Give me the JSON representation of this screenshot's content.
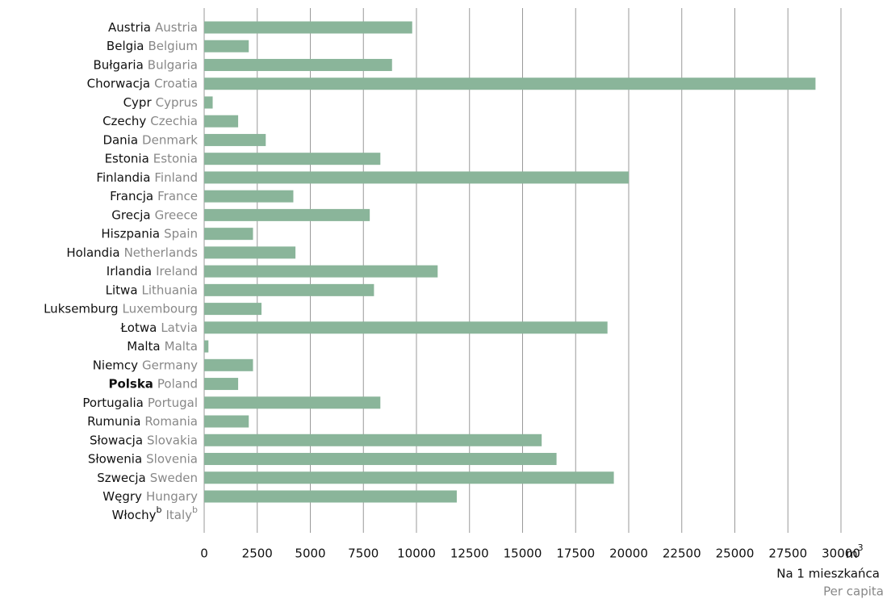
{
  "chart_data": {
    "type": "hbar",
    "categories": [
      "Austria",
      "Belgia",
      "Bułgaria",
      "Chorwacja",
      "Cypr",
      "Czechy",
      "Dania",
      "Estonia",
      "Finlandia",
      "Francja",
      "Grecja",
      "Hiszpania",
      "Holandia",
      "Irlandia",
      "Litwa",
      "Luksemburg",
      "Łotwa",
      "Malta",
      "Niemcy",
      "Polska",
      "Portugalia",
      "Rumunia",
      "Słowacja",
      "Słowenia",
      "Szwecja",
      "Węgry",
      "Włochy"
    ],
    "categories_en": [
      "Austria",
      "Belgium",
      "Bulgaria",
      "Croatia",
      "Cyprus",
      "Czechia",
      "Denmark",
      "Estonia",
      "Finland",
      "France",
      "Greece",
      "Spain",
      "Netherlands",
      "Ireland",
      "Lithuania",
      "Luxembourg",
      "Latvia",
      "Malta",
      "Germany",
      "Poland",
      "Portugal",
      "Romania",
      "Slovakia",
      "Slovenia",
      "Sweden",
      "Hungary",
      "Italy"
    ],
    "values": [
      9800,
      2100,
      8850,
      28800,
      400,
      1600,
      2900,
      8300,
      20000,
      4200,
      7800,
      2300,
      4300,
      11000,
      8000,
      2700,
      19000,
      200,
      2300,
      1600,
      8300,
      2100,
      15900,
      16600,
      19300,
      11900,
      null
    ],
    "color": "#8ab59a",
    "highlight_index": 19,
    "category_notes": [
      {
        "index": 26,
        "text": "b"
      }
    ],
    "xlim": [
      0,
      30000
    ],
    "xticks": [
      0,
      2500,
      5000,
      7500,
      10000,
      12500,
      15000,
      17500,
      20000,
      22500,
      25000,
      27500,
      30000
    ],
    "grid": true,
    "unit": "m",
    "unit_sup": "3",
    "x_label": "Na 1 mieszkańca",
    "x_label_en": "Per capita"
  }
}
